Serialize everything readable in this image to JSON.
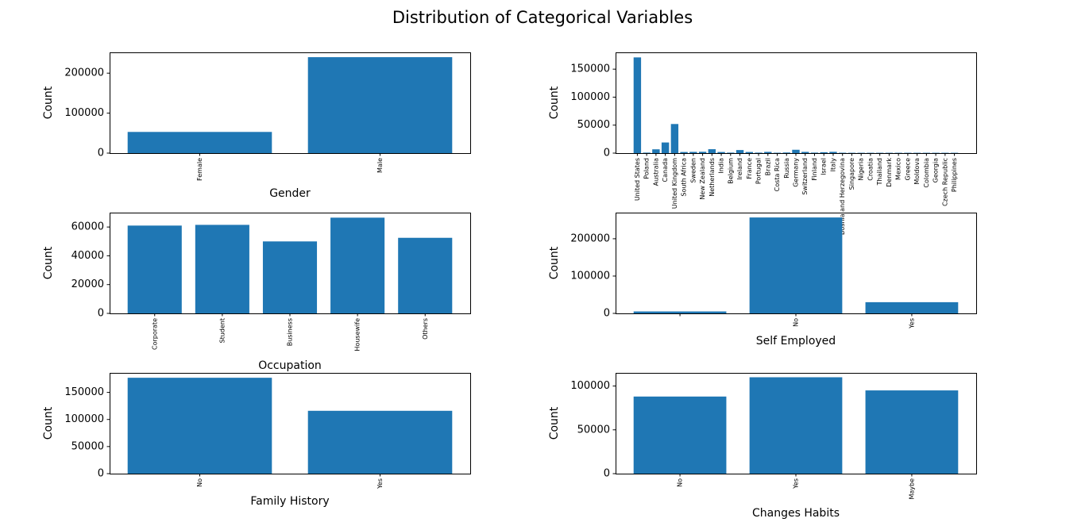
{
  "figure": {
    "title": "Distribution of Categorical Variables"
  },
  "chart_data": [
    {
      "type": "bar",
      "xlabel": "Gender",
      "ylabel": "Count",
      "categories": [
        "Female",
        "Male"
      ],
      "values": [
        53000,
        240000
      ],
      "ylim": [
        0,
        252000
      ],
      "yticks": [
        0,
        100000,
        200000
      ],
      "ytick_labels": [
        "0",
        "100000",
        "200000"
      ]
    },
    {
      "type": "bar",
      "xlabel": "",
      "ylabel": "Count",
      "categories": [
        "United States",
        "Poland",
        "Australia",
        "Canada",
        "United Kingdom",
        "South Africa",
        "Sweden",
        "New Zealand",
        "Netherlands",
        "India",
        "Belgium",
        "Ireland",
        "France",
        "Portugal",
        "Brazil",
        "Costa Rica",
        "Russia",
        "Germany",
        "Switzerland",
        "Finland",
        "Israel",
        "Italy",
        "Bosnia and Herzegovina",
        "Singapore",
        "Nigeria",
        "Croatia",
        "Thailand",
        "Denmark",
        "Mexico",
        "Greece",
        "Moldova",
        "Colombia",
        "Georgia",
        "Czech Republic",
        "Philippines"
      ],
      "values": [
        171000,
        900,
        6800,
        19000,
        52000,
        2000,
        2200,
        2400,
        7000,
        2000,
        900,
        5500,
        2000,
        900,
        2200,
        700,
        1100,
        6000,
        2200,
        900,
        1600,
        2300,
        700,
        600,
        600,
        600,
        600,
        600,
        600,
        600,
        600,
        600,
        600,
        600,
        600
      ],
      "ylim": [
        0,
        180000
      ],
      "yticks": [
        0,
        50000,
        100000,
        150000
      ],
      "ytick_labels": [
        "0",
        "50000",
        "100000",
        "150000"
      ]
    },
    {
      "type": "bar",
      "xlabel": "Occupation",
      "ylabel": "Count",
      "categories": [
        "Corporate",
        "Student",
        "Business",
        "Housewife",
        "Others"
      ],
      "values": [
        61000,
        61500,
        50000,
        66500,
        52500
      ],
      "ylim": [
        0,
        70000
      ],
      "yticks": [
        0,
        20000,
        40000,
        60000
      ],
      "ytick_labels": [
        "0",
        "20000",
        "40000",
        "60000"
      ]
    },
    {
      "type": "bar",
      "xlabel": "Self Employed",
      "ylabel": "Count",
      "categories": [
        "",
        "No",
        "Yes"
      ],
      "values": [
        5200,
        257000,
        30000
      ],
      "ylim": [
        0,
        270000
      ],
      "yticks": [
        0,
        100000,
        200000
      ],
      "ytick_labels": [
        "0",
        "100000",
        "200000"
      ]
    },
    {
      "type": "bar",
      "xlabel": "Family History",
      "ylabel": "Count",
      "categories": [
        "No",
        "Yes"
      ],
      "values": [
        177000,
        116000
      ],
      "ylim": [
        0,
        186000
      ],
      "yticks": [
        0,
        50000,
        100000,
        150000
      ],
      "ytick_labels": [
        "0",
        "50000",
        "100000",
        "150000"
      ]
    },
    {
      "type": "bar",
      "xlabel": "Changes Habits",
      "ylabel": "Count",
      "categories": [
        "No",
        "Yes",
        "Maybe"
      ],
      "values": [
        88000,
        110000,
        95000
      ],
      "ylim": [
        0,
        115000
      ],
      "yticks": [
        0,
        50000,
        100000
      ],
      "ytick_labels": [
        "0",
        "50000",
        "100000"
      ]
    }
  ]
}
